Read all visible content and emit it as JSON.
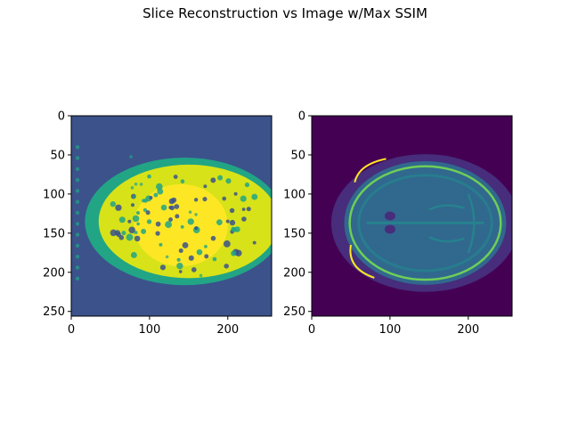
{
  "figure": {
    "title": "Slice Reconstruction vs Image w/Max SSIM"
  },
  "chart_data": [
    {
      "type": "heatmap",
      "name": "reconstruction",
      "title": "",
      "xlabel": "",
      "ylabel": "",
      "xlim": [
        0,
        256
      ],
      "ylim": [
        256,
        0
      ],
      "xticks": [
        0,
        100,
        200
      ],
      "yticks": [
        0,
        50,
        100,
        150,
        200,
        250
      ],
      "colormap": "viridis",
      "colors": {
        "background": "#3b528b",
        "mid": "#21a585",
        "high": "#d8e219",
        "peak": "#fde725",
        "dark": "#440154"
      }
    },
    {
      "type": "heatmap",
      "name": "image-max-ssim",
      "title": "",
      "xlabel": "",
      "ylabel": "",
      "xlim": [
        0,
        256
      ],
      "ylim": [
        256,
        0
      ],
      "xticks": [
        0,
        100,
        200
      ],
      "yticks": [
        0,
        50,
        100,
        150,
        200,
        250
      ],
      "colormap": "viridis",
      "colors": {
        "background": "#440154",
        "outer": "#472d7b",
        "tissue": "#31688e",
        "grey": "#26828e",
        "bright": "#6ece58",
        "peak": "#fde725"
      }
    }
  ]
}
